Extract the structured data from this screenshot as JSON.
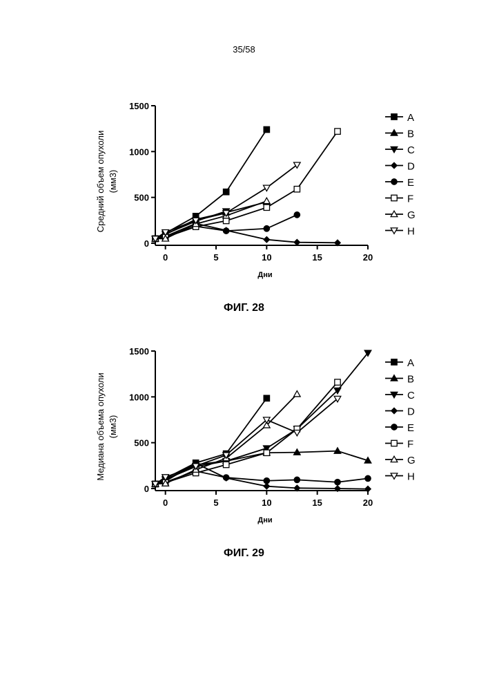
{
  "page": {
    "number": "35/58"
  },
  "charts": [
    {
      "caption": "ФИГ. 28",
      "chart_data": {
        "type": "line",
        "title": "",
        "xlabel": "Дни",
        "ylabel_lines": [
          "Средний объем опухоли",
          "(мм3)"
        ],
        "xlim": [
          -1,
          20
        ],
        "ylim": [
          0,
          1500
        ],
        "xticks": [
          0,
          5,
          10,
          15,
          20
        ],
        "yticks": [
          0,
          500,
          1000,
          1500
        ],
        "legend_position": "right",
        "series": [
          {
            "name": "A",
            "marker": "square-filled",
            "x": [
              -1,
              0,
              3,
              6,
              10
            ],
            "y": [
              50,
              110,
              295,
              560,
              1240
            ]
          },
          {
            "name": "B",
            "marker": "triangle-up-filled",
            "x": [
              -1,
              0,
              3,
              6,
              10
            ],
            "y": [
              50,
              95,
              260,
              335,
              450
            ]
          },
          {
            "name": "C",
            "marker": "triangle-down-filled",
            "x": [
              -1,
              0,
              3,
              6
            ],
            "y": [
              50,
              100,
              240,
              350
            ]
          },
          {
            "name": "D",
            "marker": "diamond-filled",
            "x": [
              -1,
              0,
              3,
              6,
              10,
              13,
              17
            ],
            "y": [
              50,
              75,
              215,
              140,
              40,
              10,
              5
            ]
          },
          {
            "name": "E",
            "marker": "circle-filled",
            "x": [
              -1,
              0,
              3,
              6,
              10,
              13
            ],
            "y": [
              50,
              70,
              185,
              135,
              160,
              310
            ]
          },
          {
            "name": "F",
            "marker": "square-open",
            "x": [
              -1,
              0,
              3,
              6,
              10,
              13,
              17
            ],
            "y": [
              50,
              65,
              180,
              245,
              390,
              590,
              1220
            ]
          },
          {
            "name": "G",
            "marker": "triangle-up-open",
            "x": [
              -1,
              0,
              3,
              6,
              10
            ],
            "y": [
              50,
              50,
              210,
              300,
              460
            ]
          },
          {
            "name": "H",
            "marker": "triangle-down-open",
            "x": [
              -1,
              0,
              3,
              6,
              10,
              13
            ],
            "y": [
              50,
              120,
              250,
              330,
              605,
              855
            ]
          }
        ]
      }
    },
    {
      "caption": "ФИГ. 29",
      "chart_data": {
        "type": "line",
        "title": "",
        "xlabel": "Дни",
        "ylabel_lines": [
          "Медиана объема опухоли",
          "(мм3)"
        ],
        "xlim": [
          -1,
          20
        ],
        "ylim": [
          0,
          1500
        ],
        "xticks": [
          0,
          5,
          10,
          15,
          20
        ],
        "yticks": [
          0,
          500,
          1000,
          1500
        ],
        "legend_position": "right",
        "series": [
          {
            "name": "A",
            "marker": "square-filled",
            "x": [
              -1,
              0,
              3,
              6,
              10
            ],
            "y": [
              50,
              110,
              280,
              380,
              985
            ]
          },
          {
            "name": "B",
            "marker": "triangle-up-filled",
            "x": [
              -1,
              0,
              3,
              6,
              10,
              13,
              17,
              20
            ],
            "y": [
              50,
              95,
              260,
              300,
              390,
              395,
              410,
              305
            ]
          },
          {
            "name": "C",
            "marker": "triangle-down-filled",
            "x": [
              -1,
              0,
              3,
              6,
              10,
              13,
              17,
              20
            ],
            "y": [
              50,
              100,
              240,
              300,
              440,
              650,
              1070,
              1480
            ]
          },
          {
            "name": "D",
            "marker": "diamond-filled",
            "x": [
              -1,
              0,
              3,
              6,
              10,
              13,
              17,
              20
            ],
            "y": [
              50,
              80,
              275,
              115,
              25,
              5,
              0,
              -5
            ]
          },
          {
            "name": "E",
            "marker": "circle-filled",
            "x": [
              -1,
              0,
              3,
              6,
              10,
              13,
              17,
              20
            ],
            "y": [
              50,
              70,
              190,
              120,
              85,
              95,
              70,
              110
            ]
          },
          {
            "name": "F",
            "marker": "square-open",
            "x": [
              -1,
              0,
              3,
              6,
              10,
              13,
              17
            ],
            "y": [
              50,
              65,
              170,
              260,
              390,
              650,
              1160
            ]
          },
          {
            "name": "G",
            "marker": "triangle-up-open",
            "x": [
              -1,
              0,
              3,
              6,
              10,
              13
            ],
            "y": [
              50,
              55,
              205,
              330,
              690,
              1030
            ]
          },
          {
            "name": "H",
            "marker": "triangle-down-open",
            "x": [
              -1,
              0,
              3,
              6,
              10,
              13,
              17
            ],
            "y": [
              50,
              125,
              245,
              365,
              750,
              610,
              980
            ]
          }
        ]
      }
    }
  ]
}
